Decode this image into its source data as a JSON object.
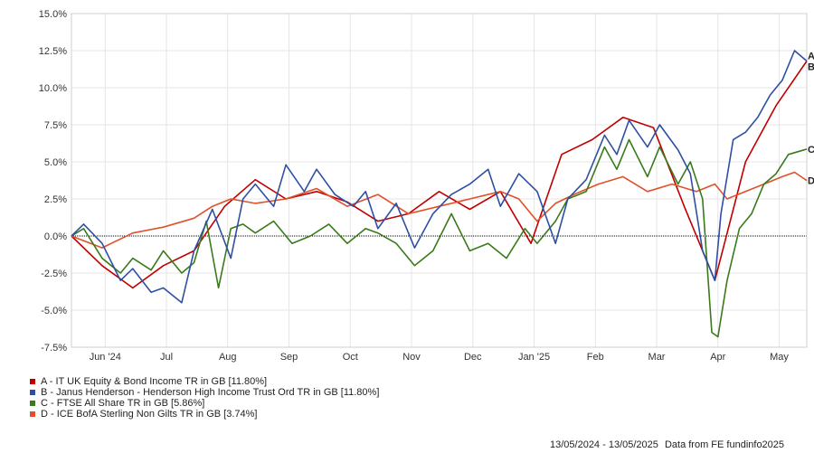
{
  "chart_data": {
    "type": "line",
    "yticks": [
      "15.0%",
      "12.5%",
      "10.0%",
      "7.5%",
      "5.0%",
      "2.5%",
      "0.0%",
      "-2.5%",
      "-5.0%",
      "-7.5%"
    ],
    "ylim": [
      -7.5,
      15.0
    ],
    "xticks": [
      "Jun '24",
      "Jul",
      "Aug",
      "Sep",
      "Oct",
      "Nov",
      "Dec",
      "Jan '25",
      "Feb",
      "Mar",
      "Apr",
      "May"
    ],
    "xtick_positions": [
      0.55,
      1.55,
      2.55,
      3.55,
      4.55,
      5.55,
      6.55,
      7.55,
      8.55,
      9.55,
      10.55,
      11.55
    ],
    "xlim": [
      0,
      12
    ],
    "series": [
      {
        "name": "A",
        "label": "A - IT UK Equity & Bond Income TR in GB [11.80%]",
        "color": "#c00000",
        "x": [
          0,
          0.5,
          1,
          1.5,
          2,
          2.5,
          3,
          3.5,
          4,
          4.5,
          5,
          5.5,
          6,
          6.5,
          7,
          7.5,
          8,
          8.5,
          9,
          9.5,
          10,
          10.5,
          11,
          11.5,
          12
        ],
        "values": [
          0.0,
          -2.0,
          -3.5,
          -2.0,
          -1.0,
          2.0,
          3.8,
          2.5,
          3.0,
          2.3,
          1.0,
          1.5,
          3.0,
          1.8,
          3.0,
          -0.5,
          5.5,
          6.5,
          8.0,
          7.3,
          2.0,
          -3.0,
          5.0,
          8.8,
          11.8
        ]
      },
      {
        "name": "B",
        "label": "B - Janus Henderson - Henderson High Income Trust Ord TR in GB [11.80%]",
        "color": "#2e4fa3",
        "x": [
          0,
          0.2,
          0.5,
          0.8,
          1,
          1.3,
          1.5,
          1.8,
          2,
          2.3,
          2.6,
          2.8,
          3,
          3.3,
          3.5,
          3.8,
          4,
          4.3,
          4.6,
          4.8,
          5,
          5.3,
          5.6,
          5.9,
          6.2,
          6.5,
          6.8,
          7,
          7.3,
          7.6,
          7.9,
          8.1,
          8.4,
          8.7,
          8.9,
          9.1,
          9.4,
          9.6,
          9.9,
          10.1,
          10.3,
          10.5,
          10.6,
          10.8,
          11.0,
          11.2,
          11.4,
          11.6,
          11.8,
          12
        ],
        "values": [
          0.0,
          0.8,
          -0.5,
          -3.0,
          -2.2,
          -3.8,
          -3.5,
          -4.5,
          -1.0,
          1.8,
          -1.5,
          2.5,
          3.5,
          2.0,
          4.8,
          3.0,
          4.5,
          2.8,
          2.0,
          3.0,
          0.5,
          2.2,
          -0.8,
          1.5,
          2.8,
          3.5,
          4.5,
          2.0,
          4.2,
          3.0,
          -0.5,
          2.5,
          3.8,
          6.8,
          5.5,
          7.8,
          6.0,
          7.5,
          5.8,
          4.2,
          -1.0,
          -3.0,
          1.5,
          6.5,
          7.0,
          8.0,
          9.5,
          10.5,
          12.5,
          11.8
        ]
      },
      {
        "name": "C",
        "label": "C - FTSE All Share TR in GB [5.86%]",
        "color": "#3a7a1a",
        "x": [
          0,
          0.2,
          0.5,
          0.8,
          1,
          1.3,
          1.5,
          1.8,
          2,
          2.2,
          2.4,
          2.6,
          2.8,
          3.0,
          3.3,
          3.6,
          3.9,
          4.2,
          4.5,
          4.8,
          5.0,
          5.3,
          5.6,
          5.9,
          6.2,
          6.5,
          6.8,
          7.1,
          7.4,
          7.6,
          7.9,
          8.1,
          8.4,
          8.7,
          8.9,
          9.1,
          9.4,
          9.6,
          9.9,
          10.1,
          10.3,
          10.45,
          10.55,
          10.7,
          10.9,
          11.1,
          11.3,
          11.5,
          11.7,
          12
        ],
        "values": [
          0.0,
          0.5,
          -1.5,
          -2.5,
          -1.5,
          -2.3,
          -1.0,
          -2.5,
          -1.8,
          1.0,
          -3.5,
          0.5,
          0.8,
          0.2,
          1.0,
          -0.5,
          0.0,
          0.8,
          -0.5,
          0.5,
          0.2,
          -0.5,
          -2.0,
          -1.0,
          1.5,
          -1.0,
          -0.5,
          -1.5,
          0.5,
          -0.5,
          1.0,
          2.5,
          3.0,
          6.0,
          4.5,
          6.5,
          4.0,
          6.0,
          3.5,
          5.0,
          2.5,
          -6.5,
          -6.8,
          -3.0,
          0.5,
          1.5,
          3.5,
          4.2,
          5.5,
          5.86
        ]
      },
      {
        "name": "D",
        "label": "D - ICE BofA Sterling Non Gilts TR in GB [3.74%]",
        "color": "#e0502a",
        "x": [
          0,
          0.5,
          1,
          1.5,
          2,
          2.3,
          2.6,
          3.0,
          3.5,
          4.0,
          4.5,
          5.0,
          5.5,
          6.0,
          6.5,
          7.0,
          7.3,
          7.6,
          7.9,
          8.2,
          8.6,
          9.0,
          9.4,
          9.8,
          10.2,
          10.5,
          10.7,
          11.0,
          11.3,
          11.6,
          11.8,
          12
        ],
        "values": [
          0.0,
          -0.8,
          0.2,
          0.6,
          1.2,
          2.0,
          2.5,
          2.2,
          2.5,
          3.2,
          2.0,
          2.8,
          1.5,
          2.0,
          2.5,
          3.0,
          2.5,
          1.0,
          2.2,
          2.8,
          3.5,
          4.0,
          3.0,
          3.5,
          3.0,
          3.5,
          2.5,
          3.0,
          3.5,
          4.0,
          4.3,
          3.74
        ]
      }
    ],
    "legend_position": "bottom-left",
    "footer_range": "13/05/2024 - 13/05/2025",
    "footer_source": "Data from FE fundinfo2025"
  }
}
